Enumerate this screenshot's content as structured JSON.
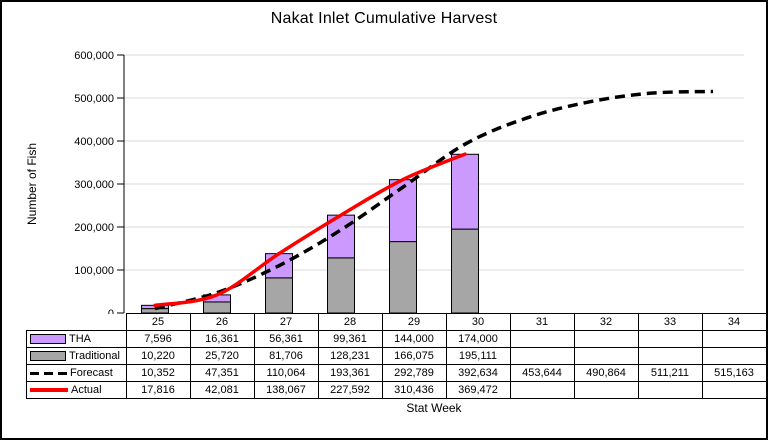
{
  "title": "Nakat Inlet Cumulative Harvest",
  "y_axis_label": "Number of Fish",
  "x_axis_label": "Stat Week",
  "chart_data": {
    "type": "combo",
    "subtype": "stacked-bar-with-lines",
    "categories": [
      "25",
      "26",
      "27",
      "28",
      "29",
      "30",
      "31",
      "32",
      "33",
      "34"
    ],
    "y_ticks": [
      "0",
      "100,000",
      "200,000",
      "300,000",
      "400,000",
      "500,000",
      "600,000"
    ],
    "ylim": [
      0,
      600000
    ],
    "grid": "horizontal",
    "legend_position": "data-table-left",
    "colors": {
      "tha": "#CC99FF",
      "traditional": "#A6A6A6",
      "forecast": "#000000",
      "actual": "#FF0000",
      "gridline": "#D9D9D9"
    },
    "series": [
      {
        "name": "THA",
        "type": "bar",
        "stack": "harvest",
        "color": "#CC99FF",
        "values": [
          7596,
          16361,
          56361,
          99361,
          144000,
          174000,
          null,
          null,
          null,
          null
        ]
      },
      {
        "name": "Traditional",
        "type": "bar",
        "stack": "harvest",
        "color": "#A6A6A6",
        "values": [
          10220,
          25720,
          81706,
          128231,
          166075,
          195111,
          null,
          null,
          null,
          null
        ]
      },
      {
        "name": "Forecast",
        "type": "line",
        "style": "dashed",
        "color": "#000000",
        "values": [
          10352,
          47351,
          110064,
          193361,
          292789,
          392634,
          453644,
          490864,
          511211,
          515163
        ]
      },
      {
        "name": "Actual",
        "type": "line",
        "style": "solid",
        "color": "#FF0000",
        "values": [
          17816,
          42081,
          138067,
          227592,
          310436,
          369472,
          null,
          null,
          null,
          null
        ]
      }
    ]
  },
  "data_table": {
    "rows": [
      {
        "label": "THA",
        "swatch": "bar",
        "color": "#CC99FF",
        "cells": [
          "7,596",
          "16,361",
          "56,361",
          "99,361",
          "144,000",
          "174,000",
          "",
          "",
          "",
          ""
        ]
      },
      {
        "label": "Traditional",
        "swatch": "bar",
        "color": "#A6A6A6",
        "cells": [
          "10,220",
          "25,720",
          "81,706",
          "128,231",
          "166,075",
          "195,111",
          "",
          "",
          "",
          ""
        ]
      },
      {
        "label": "Forecast",
        "swatch": "dashed-line",
        "color": "#000000",
        "cells": [
          "10,352",
          "47,351",
          "110,064",
          "193,361",
          "292,789",
          "392,634",
          "453,644",
          "490,864",
          "511,211",
          "515,163"
        ]
      },
      {
        "label": "Actual",
        "swatch": "solid-line",
        "color": "#FF0000",
        "cells": [
          "17,816",
          "42,081",
          "138,067",
          "227,592",
          "310,436",
          "369,472",
          "",
          "",
          "",
          ""
        ]
      }
    ]
  }
}
